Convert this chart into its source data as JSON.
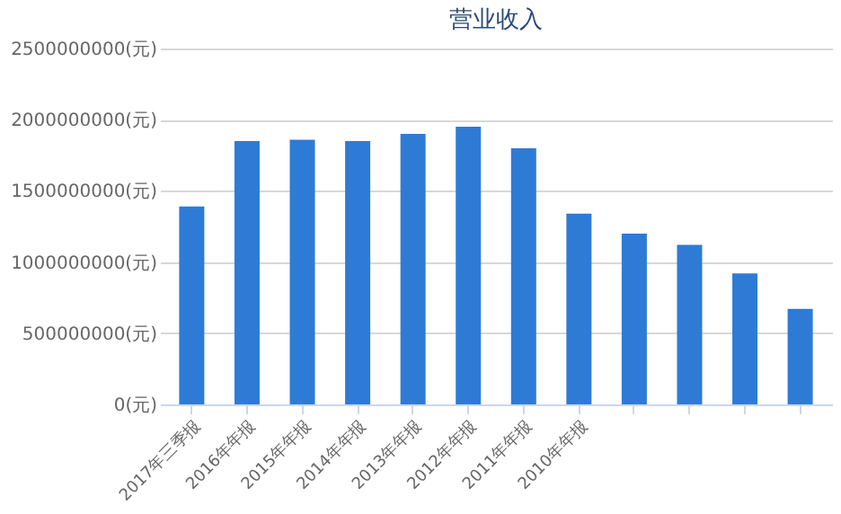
{
  "chart_data": {
    "type": "bar",
    "title": "营业收入",
    "categories": [
      "2017年三季报",
      "2016年年报",
      "2015年年报",
      "2014年年报",
      "2013年年报",
      "2012年年报",
      "2011年年报",
      "2010年年报",
      null,
      null,
      null,
      null
    ],
    "values": [
      1390000000,
      1850000000,
      1860000000,
      1850000000,
      1900000000,
      1950000000,
      1800000000,
      1340000000,
      1200000000,
      1120000000,
      920000000,
      670000000
    ],
    "color": "#2e7bd6",
    "ylim": [
      0,
      2500000000
    ],
    "yticks": [
      {
        "value": 0,
        "label": "0(元)"
      },
      {
        "value": 500000000,
        "label": "500000000(元)"
      },
      {
        "value": 1000000000,
        "label": "1000000000(元)"
      },
      {
        "value": 1500000000,
        "label": "1500000000(元)"
      },
      {
        "value": 2000000000,
        "label": "2000000000(元)"
      },
      {
        "value": 2500000000,
        "label": "2500000000(元)"
      }
    ],
    "grid": "y"
  }
}
